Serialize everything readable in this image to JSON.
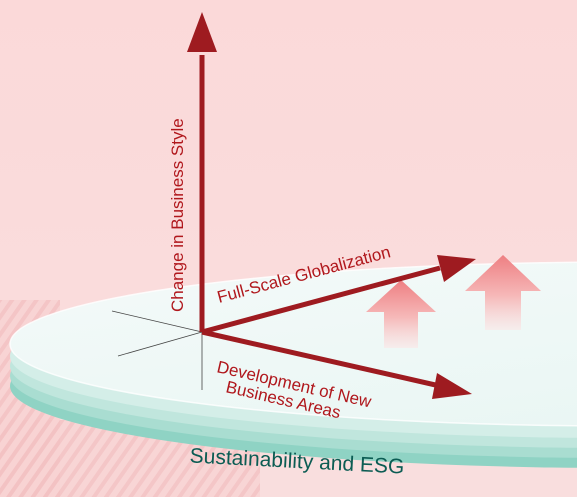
{
  "labels": {
    "vertical_axis": "Change in Business Style",
    "globalization_axis": "Full-Scale Globalization",
    "new_areas_line1": "Development of New",
    "new_areas_line2": "Business Areas",
    "foundation": "Sustainability and ESG"
  },
  "icons": {
    "growth_arrows": "up-arrow-icon"
  },
  "colors": {
    "background": "#fbdcdc",
    "arrow": "#9e1b20",
    "label_text": "#b0171c",
    "foundation_text": "#0b5c53",
    "disc_top": "#eef8f6",
    "disc_layer": "#b9e3db",
    "growth_arrow": "#f08b8b"
  }
}
